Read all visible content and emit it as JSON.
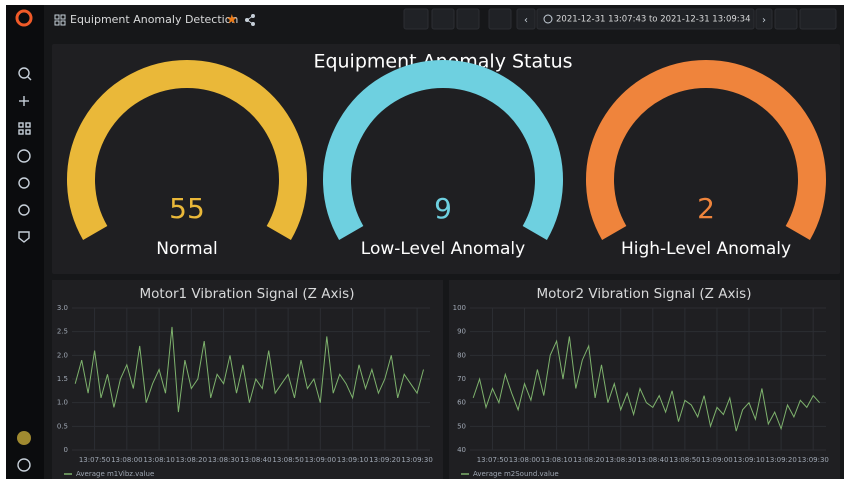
{
  "header": {
    "title": "Equipment Anomaly Detection",
    "time_range": "2021-12-31 13:07:43 to 2021-12-31 13:09:34"
  },
  "status_panel": {
    "title": "Equipment Anomaly Status",
    "gauges": [
      {
        "value": 55,
        "label": "Normal",
        "color": "#EAB839"
      },
      {
        "value": 9,
        "label": "Low-Level Anomaly",
        "color": "#6ED0E0"
      },
      {
        "value": 2,
        "label": "High-Level Anomaly",
        "color": "#EF843C"
      }
    ]
  },
  "chart_data": [
    {
      "type": "line",
      "title": "Motor1 Vibration Signal (Z Axis)",
      "grid": true,
      "x": [
        "13:07:44",
        "13:07:46",
        "13:07:48",
        "13:07:50",
        "13:07:52",
        "13:07:54",
        "13:07:56",
        "13:07:58",
        "13:08:00",
        "13:08:02",
        "13:08:04",
        "13:08:06",
        "13:08:08",
        "13:08:10",
        "13:08:12",
        "13:08:14",
        "13:08:16",
        "13:08:18",
        "13:08:20",
        "13:08:22",
        "13:08:24",
        "13:08:26",
        "13:08:28",
        "13:08:30",
        "13:08:32",
        "13:08:34",
        "13:08:36",
        "13:08:38",
        "13:08:40",
        "13:08:42",
        "13:08:44",
        "13:08:46",
        "13:08:48",
        "13:08:50",
        "13:08:52",
        "13:08:54",
        "13:08:56",
        "13:08:58",
        "13:09:00",
        "13:09:02",
        "13:09:04",
        "13:09:06",
        "13:09:08",
        "13:09:10",
        "13:09:12",
        "13:09:14",
        "13:09:16",
        "13:09:18",
        "13:09:20",
        "13:09:22",
        "13:09:24",
        "13:09:26",
        "13:09:28",
        "13:09:30",
        "13:09:32"
      ],
      "series": [
        {
          "name": "Average m1Vibz.value",
          "color": "#7EB26D",
          "values": [
            1.4,
            1.9,
            1.2,
            2.1,
            1.1,
            1.6,
            0.9,
            1.5,
            1.8,
            1.3,
            2.2,
            1.0,
            1.4,
            1.7,
            1.2,
            2.6,
            0.8,
            1.9,
            1.3,
            1.5,
            2.3,
            1.1,
            1.6,
            1.4,
            2.0,
            1.2,
            1.8,
            1.0,
            1.5,
            1.3,
            2.1,
            1.2,
            1.4,
            1.6,
            1.1,
            1.9,
            1.3,
            1.5,
            1.0,
            2.4,
            1.2,
            1.6,
            1.4,
            1.1,
            1.8,
            1.3,
            1.7,
            1.2,
            1.5,
            2.0,
            1.1,
            1.6,
            1.4,
            1.2,
            1.7
          ]
        }
      ],
      "xlim": [
        "13:07:43",
        "13:09:34"
      ],
      "xticks": [
        "13:07:50",
        "13:08:00",
        "13:08:10",
        "13:08:20",
        "13:08:30",
        "13:08:40",
        "13:08:50",
        "13:09:00",
        "13:09:10",
        "13:09:20",
        "13:09:30"
      ],
      "ylim": [
        0,
        3
      ],
      "yticks": [
        0,
        0.5,
        {
          "value": 1,
          "label": "1.0"
        },
        1.5,
        {
          "value": 2,
          "label": "2.0"
        },
        2.5,
        {
          "value": 3,
          "label": "3.0"
        }
      ]
    },
    {
      "type": "line",
      "title": "Motor2 Vibration Signal (Z Axis)",
      "grid": true,
      "x": [
        "13:07:44",
        "13:07:46",
        "13:07:48",
        "13:07:50",
        "13:07:52",
        "13:07:54",
        "13:07:56",
        "13:07:58",
        "13:08:00",
        "13:08:02",
        "13:08:04",
        "13:08:06",
        "13:08:08",
        "13:08:10",
        "13:08:12",
        "13:08:14",
        "13:08:16",
        "13:08:18",
        "13:08:20",
        "13:08:22",
        "13:08:24",
        "13:08:26",
        "13:08:28",
        "13:08:30",
        "13:08:32",
        "13:08:34",
        "13:08:36",
        "13:08:38",
        "13:08:40",
        "13:08:42",
        "13:08:44",
        "13:08:46",
        "13:08:48",
        "13:08:50",
        "13:08:52",
        "13:08:54",
        "13:08:56",
        "13:08:58",
        "13:09:00",
        "13:09:02",
        "13:09:04",
        "13:09:06",
        "13:09:08",
        "13:09:10",
        "13:09:12",
        "13:09:14",
        "13:09:16",
        "13:09:18",
        "13:09:20",
        "13:09:22",
        "13:09:24",
        "13:09:26",
        "13:09:28",
        "13:09:30",
        "13:09:32"
      ],
      "series": [
        {
          "name": "Average m2Sound.value",
          "color": "#7EB26D",
          "values": [
            62,
            70,
            58,
            66,
            60,
            72,
            64,
            57,
            68,
            61,
            74,
            63,
            80,
            86,
            70,
            88,
            66,
            78,
            84,
            62,
            76,
            60,
            68,
            57,
            64,
            55,
            66,
            60,
            58,
            63,
            56,
            65,
            52,
            61,
            59,
            54,
            63,
            50,
            58,
            55,
            62,
            48,
            57,
            60,
            53,
            66,
            51,
            56,
            49,
            59,
            54,
            61,
            58,
            63,
            60
          ]
        }
      ],
      "xlim": [
        "13:07:43",
        "13:09:34"
      ],
      "xticks": [
        "13:07:50",
        "13:08:00",
        "13:08:10",
        "13:08:20",
        "13:08:30",
        "13:08:40",
        "13:08:50",
        "13:09:00",
        "13:09:10",
        "13:09:20",
        "13:09:30"
      ],
      "ylim": [
        40,
        100
      ],
      "yticks": [
        40,
        50,
        60,
        70,
        80,
        90,
        100
      ]
    }
  ]
}
